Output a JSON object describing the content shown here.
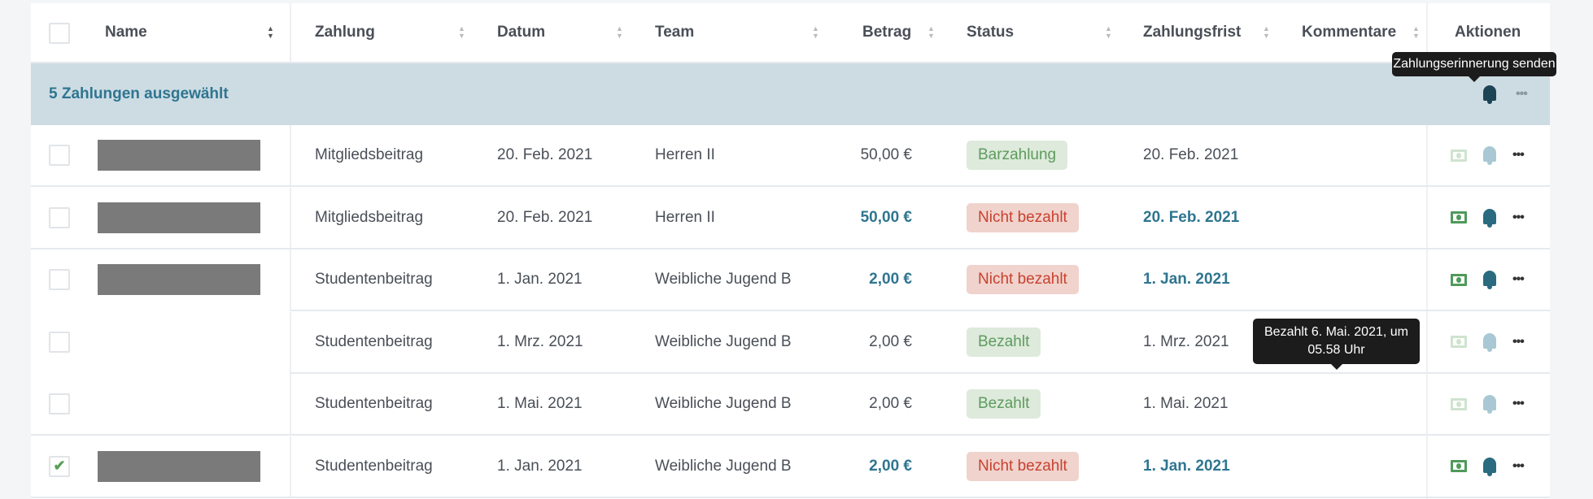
{
  "header": {
    "select_all": false,
    "columns": [
      "Name",
      "Zahlung",
      "Datum",
      "Team",
      "Betrag",
      "Status",
      "Zahlungsfrist",
      "Kommentare",
      "Aktionen"
    ]
  },
  "selection_bar": {
    "label": "5 Zahlungen ausgewählt"
  },
  "tooltips": {
    "reminder": "Zahlungserinnerung senden",
    "paid": "Bezahlt 6. Mai. 2021, um 05.58 Uhr"
  },
  "colors": {
    "accent": "#2f7590",
    "selection_bg": "#cddce3",
    "paid_green": "#5d9c5d",
    "unpaid_red": "#c9412f"
  },
  "rows": [
    {
      "checked": false,
      "name_redacted": true,
      "payment": "Mitgliedsbeitrag",
      "date": "20. Feb. 2021",
      "team": "Herren II",
      "amount": "50,00 €",
      "status": "Barzahlung",
      "due": "20. Feb. 2021"
    },
    {
      "checked": false,
      "name_redacted": true,
      "payment": "Mitgliedsbeitrag",
      "date": "20. Feb. 2021",
      "team": "Herren II",
      "amount": "50,00 €",
      "status": "Nicht bezahlt",
      "due": "20. Feb. 2021"
    },
    {
      "checked": false,
      "name_redacted": true,
      "payment": "Studentenbeitrag",
      "date": "1. Jan. 2021",
      "team": "Weibliche Jugend B",
      "amount": "2,00 €",
      "status": "Nicht bezahlt",
      "due": "1. Jan. 2021"
    },
    {
      "checked": false,
      "name_redacted": false,
      "payment": "Studentenbeitrag",
      "date": "1. Mrz. 2021",
      "team": "Weibliche Jugend B",
      "amount": "2,00 €",
      "status": "Bezahlt",
      "due": "1. Mrz. 2021"
    },
    {
      "checked": false,
      "name_redacted": false,
      "payment": "Studentenbeitrag",
      "date": "1. Mai. 2021",
      "team": "Weibliche Jugend B",
      "amount": "2,00 €",
      "status": "Bezahlt",
      "due": "1. Mai. 2021"
    },
    {
      "checked": true,
      "name_redacted": true,
      "payment": "Studentenbeitrag",
      "date": "1. Jan. 2021",
      "team": "Weibliche Jugend B",
      "amount": "2,00 €",
      "status": "Nicht bezahlt",
      "due": "1. Jan. 2021"
    }
  ]
}
